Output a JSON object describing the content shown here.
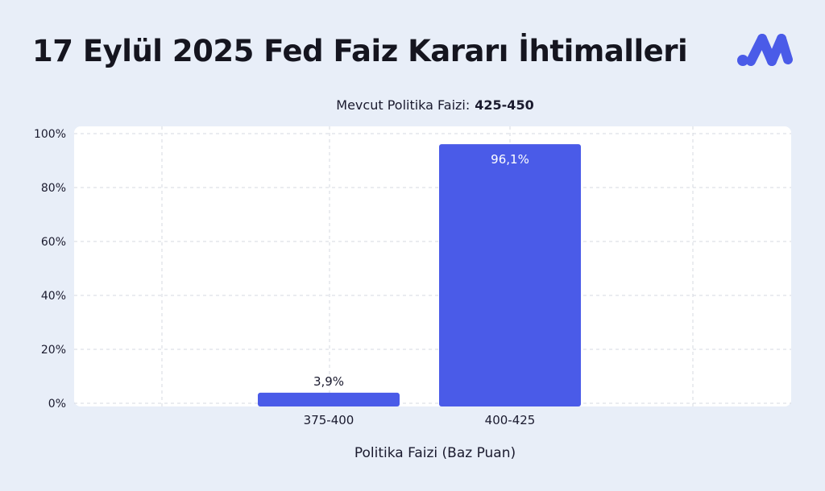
{
  "header": {
    "title": "17 Eylül 2025 Fed Faiz Kararı İhtimalleri",
    "logo_icon": "brand-logo-icon"
  },
  "colors": {
    "background": "#e8eef8",
    "plot_background": "#ffffff",
    "bar": "#4a5be8",
    "logo": "#4a5be8"
  },
  "chart_data": {
    "type": "bar",
    "subtitle_label": "Mevcut Politika Faizi:",
    "subtitle_value": "425-450",
    "categories": [
      "375-400",
      "400-425"
    ],
    "values": [
      3.9,
      96.1
    ],
    "data_labels": [
      "3,9%",
      "96,1%"
    ],
    "xlabel": "Politika Faizi (Baz Puan)",
    "ylabel": "",
    "ylim": [
      0,
      100
    ],
    "yticks": [
      0,
      20,
      40,
      60,
      80,
      100
    ],
    "ytick_labels": [
      "0%",
      "20%",
      "40%",
      "60%",
      "80%",
      "100%"
    ],
    "grid": true,
    "grid_style": "dashed"
  }
}
